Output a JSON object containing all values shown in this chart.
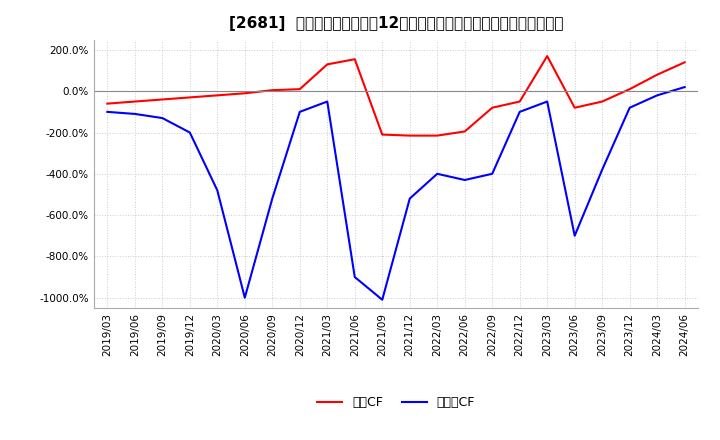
{
  "title": "[2681]  キャッシュフローの12か月移動合計の対前年同期増減率の推移",
  "ylim": [
    -1050,
    250
  ],
  "yticks": [
    200,
    0,
    -200,
    -400,
    -600,
    -800,
    -1000
  ],
  "legend_labels": [
    "営業CF",
    "フリーCF"
  ],
  "line_colors": [
    "#ff0000",
    "#0000ff"
  ],
  "dates": [
    "2019/03",
    "2019/06",
    "2019/09",
    "2019/12",
    "2020/03",
    "2020/06",
    "2020/09",
    "2020/12",
    "2021/03",
    "2021/06",
    "2021/09",
    "2021/12",
    "2022/03",
    "2022/06",
    "2022/09",
    "2022/12",
    "2023/03",
    "2023/06",
    "2023/09",
    "2023/12",
    "2024/03",
    "2024/06"
  ],
  "operating_cf": [
    -60,
    -50,
    -40,
    -30,
    -20,
    -10,
    5,
    10,
    130,
    155,
    -210,
    -215,
    -215,
    -195,
    -80,
    -50,
    170,
    -80,
    -50,
    10,
    80,
    140
  ],
  "free_cf": [
    -100,
    -110,
    -130,
    -200,
    -480,
    -1000,
    -520,
    -100,
    -50,
    -900,
    -1010,
    -520,
    -400,
    -430,
    -400,
    -100,
    -50,
    -700,
    -380,
    -80,
    -20,
    20
  ],
  "background_color": "#ffffff",
  "grid_color": "#cccccc",
  "grid_style": "dotted",
  "title_fontsize": 11,
  "tick_fontsize": 7.5
}
